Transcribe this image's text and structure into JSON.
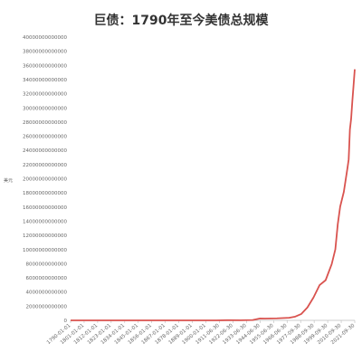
{
  "chart_data": {
    "type": "line",
    "title": "巨债：1790年至今美债总规模",
    "ylabel": "",
    "y_unit_label": "美元",
    "ylim": [
      0,
      40000000000000
    ],
    "yticks": [
      0,
      2000000000000,
      4000000000000,
      6000000000000,
      8000000000000,
      10000000000000,
      12000000000000,
      14000000000000,
      16000000000000,
      18000000000000,
      20000000000000,
      22000000000000,
      24000000000000,
      26000000000000,
      28000000000000,
      30000000000000,
      32000000000000,
      34000000000000,
      36000000000000,
      38000000000000,
      40000000000000
    ],
    "ytick_labels": [
      "0",
      "2000000000000",
      "4000000000000",
      "6000000000000",
      "8000000000000",
      "10000000000000",
      "12000000000000",
      "14000000000000",
      "16000000000000",
      "18000000000000",
      "20000000000000",
      "22000000000000",
      "24000000000000",
      "26000000000000",
      "28000000000000",
      "30000000000000",
      "32000000000000",
      "34000000000000",
      "36000000000000",
      "38000000000000",
      "40000000000000"
    ],
    "x_range": [
      1790,
      2024
    ],
    "xtick_labels": [
      "1790-01-01",
      "1801-01-01",
      "1812-01-01",
      "1823-01-01",
      "1834-01-01",
      "1845-01-01",
      "1856-01-01",
      "1867-01-01",
      "1878-01-01",
      "1889-01-01",
      "1900-01-01",
      "1911-06-30",
      "1922-06-30",
      "1933-06-30",
      "1944-06-30",
      "1955-06-30",
      "1966-06-30",
      "1977-09-30",
      "1988-09-30",
      "1999-09-30",
      "2010-09-30",
      "2021-09-30"
    ],
    "grid": false,
    "line_color": "#d9534f",
    "series": [
      {
        "x": [
          1790,
          1800,
          1810,
          1820,
          1830,
          1840,
          1850,
          1860,
          1866,
          1870,
          1880,
          1890,
          1900,
          1910,
          1919,
          1930,
          1940,
          1946,
          1950,
          1960,
          1970,
          1975,
          1980,
          1985,
          1990,
          1995,
          2000,
          2005,
          2008,
          2010,
          2012,
          2015,
          2018,
          2019,
          2020,
          2021,
          2022,
          2023,
          2024
        ],
        "y": [
          75000000,
          83000000,
          53000000,
          91000000,
          49000000,
          3600000,
          63000000,
          65000000,
          2800000000,
          2400000000,
          2100000000,
          1100000000,
          1300000000,
          1100000000,
          27000000000,
          16000000000,
          43000000000,
          269000000000,
          257000000000,
          286000000000,
          371000000000,
          533000000000,
          908000000000,
          1820000000000,
          3230000000000,
          4970000000000,
          5670000000000,
          7930000000000,
          10020000000000,
          13560000000000,
          16070000000000,
          18150000000000,
          21520000000000,
          22720000000000,
          26950000000000,
          28430000000000,
          30930000000000,
          33170000000000,
          35460000000000
        ]
      }
    ]
  }
}
